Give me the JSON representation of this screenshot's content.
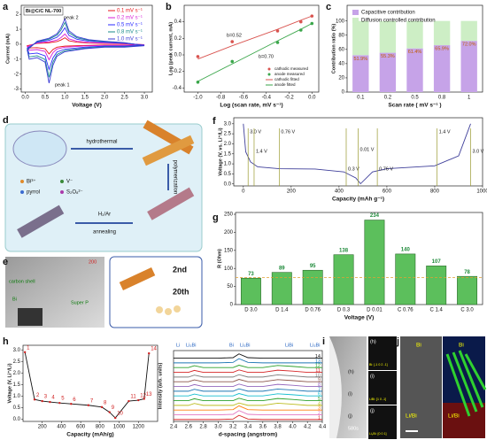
{
  "panel_labels": [
    "a",
    "b",
    "c",
    "d",
    "e",
    "f",
    "g",
    "h",
    "i",
    "j"
  ],
  "panels": {
    "d": {
      "steps": [
        "hydrothermal",
        "polymerization",
        "H₂/Ar",
        "annealing"
      ],
      "legend": [
        "Bi³⁺",
        "V⁻",
        "pyrrol",
        "S₂O₈²⁻"
      ]
    },
    "e": {
      "labels": [
        "carbon shell",
        "Bi",
        "Super P",
        "200",
        "2nd",
        "20th"
      ]
    },
    "i": {
      "labels": [
        "(h)",
        "(i)",
        "(j)",
        "580s",
        "(h)",
        "Bi: [-1 0 2 -1]",
        "(i)",
        "LiBi: [1 0 -1]",
        "(j)",
        "Li₃Bi: [0 0 1]"
      ]
    },
    "j": {
      "labels": [
        "Bi",
        "Li/Bi",
        "Bi",
        "Li/Bi"
      ]
    }
  },
  "chart_data": [
    {
      "type": "line",
      "label": "Bi@C/C NL-700",
      "xlabel": "Voltage (V)",
      "ylabel": "Current (mA)",
      "x": [
        3.0,
        2.5,
        2.0,
        1.5,
        1.0,
        0.8,
        0.7,
        0.6,
        0.5,
        0.3,
        0.1,
        0.05,
        0.3,
        0.6,
        0.8,
        0.9,
        1.0,
        1.1,
        1.3,
        1.6,
        2.0,
        2.5,
        3.0
      ],
      "series": [
        {
          "name": "0.1 mV s⁻¹",
          "color": "#e8161b",
          "values": [
            -0.03,
            -0.05,
            -0.05,
            -0.08,
            -0.13,
            -0.2,
            -0.35,
            -0.65,
            -0.3,
            -0.23,
            -0.25,
            -0.1,
            0.05,
            0.1,
            0.18,
            0.28,
            0.43,
            0.23,
            0.13,
            0.08,
            0.05,
            0.03,
            -0.03
          ]
        },
        {
          "name": "0.2 mV s⁻¹",
          "color": "#d81fd8",
          "values": [
            -0.04,
            -0.08,
            -0.08,
            -0.12,
            -0.2,
            -0.32,
            -0.56,
            -1.04,
            -0.48,
            -0.36,
            -0.4,
            -0.16,
            0.08,
            0.16,
            0.28,
            0.44,
            0.68,
            0.36,
            0.2,
            0.12,
            0.08,
            0.04,
            -0.04
          ]
        },
        {
          "name": "0.5 mV s⁻¹",
          "color": "#2a2aff",
          "values": [
            -0.07,
            -0.13,
            -0.13,
            -0.2,
            -0.33,
            -0.52,
            -0.91,
            -1.69,
            -0.78,
            -0.59,
            -0.65,
            -0.26,
            0.13,
            0.26,
            0.46,
            0.72,
            1.1,
            0.59,
            0.33,
            0.2,
            0.13,
            0.07,
            -0.07
          ]
        },
        {
          "name": "0.8 mV s⁻¹",
          "color": "#17898a",
          "values": [
            -0.09,
            -0.17,
            -0.17,
            -0.26,
            -0.43,
            -0.68,
            -1.19,
            -2.21,
            -1.02,
            -0.77,
            -0.85,
            -0.34,
            0.17,
            0.34,
            0.6,
            0.94,
            1.45,
            0.77,
            0.43,
            0.26,
            0.17,
            0.09,
            -0.09
          ]
        },
        {
          "name": "1.0 mV s⁻¹",
          "color": "#3b3bd6",
          "values": [
            -0.1,
            -0.2,
            -0.2,
            -0.3,
            -0.5,
            -0.8,
            -1.4,
            -2.6,
            -1.2,
            -0.9,
            -1.0,
            -0.4,
            0.2,
            0.4,
            0.7,
            1.1,
            1.7,
            0.9,
            0.5,
            0.3,
            0.2,
            0.1,
            -0.1
          ]
        }
      ],
      "annotations": [
        "peak 1",
        "peak 2"
      ],
      "xlim": [
        -0.1,
        3.2
      ],
      "xticks": [
        {
          "value": 0,
          "label": "0.0"
        },
        {
          "value": 0.5,
          "label": "0.5"
        },
        {
          "value": 1,
          "label": "1.0"
        },
        {
          "value": 1.5,
          "label": "1.5"
        },
        {
          "value": 2,
          "label": "2.0"
        },
        {
          "value": 2.5,
          "label": "2.5"
        },
        {
          "value": 3,
          "label": "3.0"
        }
      ],
      "ylim": [
        -3.2,
        2.6
      ],
      "yticks": [
        -3,
        -2,
        -1,
        0,
        1,
        2
      ]
    },
    {
      "type": "scatter",
      "xlabel": "Log (scan rate, mV s⁻¹)",
      "ylabel": "Log (peak current, mA)",
      "x": [
        -1.0,
        -0.699,
        -0.301,
        -0.097,
        0.0
      ],
      "series": [
        {
          "name": "cathodic measured",
          "color": "#d9534f",
          "mode": "markers",
          "values": [
            -0.02,
            0.16,
            0.29,
            0.4,
            0.47
          ]
        },
        {
          "name": "anode measured",
          "color": "#3aa64a",
          "mode": "markers",
          "values": [
            -0.33,
            -0.08,
            0.15,
            0.3,
            0.38
          ]
        },
        {
          "name": "cathodic fitted",
          "color": "#d9534f",
          "mode": "line",
          "values": [
            -0.05,
            0.11,
            0.31,
            0.42,
            0.47
          ]
        },
        {
          "name": "anode fitted",
          "color": "#3aa64a",
          "mode": "line",
          "values": [
            -0.32,
            -0.11,
            0.17,
            0.31,
            0.38
          ]
        }
      ],
      "annotations": [
        "b=0.52",
        "b=0.70"
      ],
      "xlim": [
        -1.12,
        0.06
      ],
      "xticks": [
        {
          "value": -1,
          "label": "-1.0"
        },
        {
          "value": -0.8,
          "label": "-0.8"
        },
        {
          "value": -0.6,
          "label": "-0.6"
        },
        {
          "value": -0.4,
          "label": "-0.4"
        },
        {
          "value": -0.2,
          "label": "-0.2"
        },
        {
          "value": 0,
          "label": "0.0"
        }
      ],
      "ylim": [
        -0.45,
        0.6
      ],
      "yticks": [
        {
          "value": -0.4,
          "label": "-0.4"
        },
        {
          "value": -0.2,
          "label": "-0.2"
        },
        {
          "value": 0,
          "label": "0.0"
        },
        {
          "value": 0.2,
          "label": "0.2"
        },
        {
          "value": 0.4,
          "label": "0.4"
        }
      ]
    },
    {
      "type": "stacked_bar",
      "xlabel": "Scan rate ( mV s⁻¹ )",
      "ylabel": "Contribution ratio (%)",
      "categories": [
        "0.1",
        "0.2",
        "0.5",
        "0.8",
        "1"
      ],
      "series": [
        {
          "name": "Capacitive contribution",
          "color": "#c6a3e8",
          "values": [
            51.9,
            55.3,
            61.4,
            65.9,
            72.0
          ],
          "value_labels": [
            "51.9%",
            "55.3%",
            "61.4%",
            "65.9%",
            "72.0%"
          ]
        },
        {
          "name": "Diffusion controlled contribution",
          "color": "#cdeec5",
          "values": [
            48.1,
            44.7,
            38.6,
            34.1,
            28.0
          ]
        }
      ],
      "ylim": [
        0,
        122
      ],
      "yticks": [
        0,
        20,
        40,
        60,
        80,
        100
      ]
    },
    {
      "type": "line",
      "xlabel": "Capacity (mAh g⁻¹)",
      "ylabel": "Voltage (V, vs. Li⁺/Li)",
      "x": [
        0,
        10,
        30,
        60,
        150,
        300,
        420,
        470,
        490,
        540,
        600,
        800,
        900,
        950
      ],
      "series": [
        {
          "name": null,
          "color": "#3f3f9a",
          "values": [
            3.0,
            1.6,
            1.1,
            0.85,
            0.76,
            0.74,
            0.6,
            0.3,
            0.01,
            0.6,
            0.76,
            0.9,
            1.4,
            3.0
          ]
        }
      ],
      "markers": [
        {
          "x": 20,
          "label": "3.0 V"
        },
        {
          "x": 45,
          "label": "1.4 V"
        },
        {
          "x": 150,
          "label": "0.76 V"
        },
        {
          "x": 430,
          "label": "0.3 V"
        },
        {
          "x": 480,
          "label": "0.01 V"
        },
        {
          "x": 560,
          "label": "0.76 V"
        },
        {
          "x": 810,
          "label": "1.4 V"
        },
        {
          "x": 950,
          "label": "3.0 V"
        }
      ],
      "xlim": [
        -40,
        1000
      ],
      "xticks": [
        0,
        200,
        400,
        600,
        800,
        1000
      ],
      "ylim": [
        -0.1,
        3.3
      ],
      "yticks": [
        {
          "value": 0,
          "label": "0.0"
        },
        {
          "value": 0.5,
          "label": "0.5"
        },
        {
          "value": 1,
          "label": "1.0"
        },
        {
          "value": 1.5,
          "label": "1.5"
        },
        {
          "value": 2,
          "label": "2.0"
        },
        {
          "value": 2.5,
          "label": "2.5"
        },
        {
          "value": 3,
          "label": "3.0"
        }
      ]
    },
    {
      "type": "bar",
      "xlabel": "Voltage (V)",
      "ylabel": "R (Ohm)",
      "categories": [
        "D 3.0",
        "D 1.4",
        "D 0.76",
        "D 0.3",
        "D 0.01",
        "C 0.76",
        "C 1.4",
        "C 3.0"
      ],
      "values": [
        73,
        89,
        95,
        138,
        234,
        140,
        107,
        78
      ],
      "color": "#5cbf5c",
      "hline": 75,
      "hline_color": "#e0a030",
      "ylim": [
        0,
        255
      ],
      "yticks": [
        0,
        50,
        100,
        150,
        200,
        250
      ]
    },
    {
      "type": "line",
      "xlabel": "Capacity (mAh/g)",
      "ylabel": "Voltage (V, Li⁺/Li)",
      "x": [
        20,
        120,
        200,
        280,
        380,
        500,
        680,
        820,
        900,
        960,
        1100,
        1200,
        1260,
        1310
      ],
      "series": [
        {
          "name": null,
          "color": "#111111",
          "values": [
            2.9,
            0.85,
            0.78,
            0.74,
            0.7,
            0.66,
            0.6,
            0.52,
            0.3,
            0.05,
            0.78,
            0.82,
            0.88,
            2.85
          ],
          "point_labels": [
            "1",
            "2",
            "3",
            "4",
            "5",
            "6",
            "7",
            "8",
            "9",
            "10",
            "11",
            "12",
            "13",
            "14"
          ],
          "label_color": "#d02020"
        }
      ],
      "xlim": [
        0,
        1400
      ],
      "xticks": [
        200,
        400,
        600,
        800,
        1000,
        1200
      ],
      "ylim": [
        -0.1,
        3.2
      ],
      "yticks": [
        {
          "value": 0,
          "label": "0.0"
        },
        {
          "value": 0.5,
          "label": "0.5"
        },
        {
          "value": 1,
          "label": "1.0"
        },
        {
          "value": 1.5,
          "label": "1.5"
        },
        {
          "value": 2,
          "label": "2.0"
        },
        {
          "value": 2.5,
          "label": "2.5"
        },
        {
          "value": 3,
          "label": "3.0"
        }
      ]
    },
    {
      "type": "line",
      "xlabel": "d-spacing (angstrom)",
      "ylabel": "Intensity (arb. units)",
      "x": [
        2.4,
        2.6,
        2.68,
        2.8,
        3.0,
        3.2,
        3.28,
        3.4,
        3.6,
        3.8,
        4.0,
        4.2,
        4.4
      ],
      "series": [
        {
          "name": "1",
          "color": "#d62728",
          "values": [
            0,
            0,
            0,
            0,
            0,
            0.1,
            0.9,
            0.1,
            0,
            0,
            0,
            0,
            0
          ]
        },
        {
          "name": "2",
          "color": "#e377c2",
          "values": [
            1,
            1,
            1,
            1,
            1,
            1.1,
            1.9,
            1.1,
            1,
            1,
            1,
            1,
            1
          ]
        },
        {
          "name": "3",
          "color": "#ff7f0e",
          "values": [
            2,
            2,
            2,
            2,
            2,
            2.1,
            2.9,
            2.1,
            2,
            2,
            2,
            2,
            2
          ]
        },
        {
          "name": "4",
          "color": "#bcbd22",
          "values": [
            3,
            3,
            3.4,
            3,
            3,
            3,
            3.5,
            3,
            3,
            3.45,
            3.25,
            3,
            3
          ]
        },
        {
          "name": "5",
          "color": "#2ca02c",
          "values": [
            4,
            4,
            4.4,
            4,
            4,
            4,
            4.5,
            4,
            4,
            4.45,
            4.25,
            4,
            4
          ]
        },
        {
          "name": "6",
          "color": "#17becf",
          "values": [
            5,
            5,
            5.4,
            5,
            5,
            5,
            5.5,
            5,
            5,
            5.45,
            5.25,
            5,
            5
          ]
        },
        {
          "name": "7",
          "color": "#1f77b4",
          "values": [
            6,
            6,
            6.4,
            6,
            6,
            6,
            6.5,
            6,
            6,
            6.45,
            6.25,
            6,
            6
          ]
        },
        {
          "name": "8",
          "color": "#9467bd",
          "values": [
            7,
            7,
            7.4,
            7,
            7,
            7,
            7.5,
            7,
            7,
            7.45,
            7.25,
            7,
            7
          ]
        },
        {
          "name": "9",
          "color": "#8c564b",
          "values": [
            8,
            8,
            8.4,
            8,
            8,
            8,
            8.5,
            8,
            8,
            8.45,
            8.25,
            8,
            8
          ]
        },
        {
          "name": "10",
          "color": "#7f7f7f",
          "values": [
            9,
            9,
            9.4,
            9,
            9,
            9,
            9.5,
            9,
            9,
            9.45,
            9.25,
            9,
            9
          ]
        },
        {
          "name": "11",
          "color": "#d62728",
          "values": [
            10,
            10,
            10.4,
            10,
            10,
            10,
            10.5,
            10,
            10,
            10.45,
            10.25,
            10,
            10
          ]
        },
        {
          "name": "12",
          "color": "#2ca02c",
          "values": [
            11,
            11,
            11.4,
            11,
            11,
            11,
            11.5,
            11,
            11,
            11.45,
            11.25,
            11,
            11
          ]
        },
        {
          "name": "13",
          "color": "#1f77b4",
          "values": [
            12,
            12,
            12,
            12,
            12,
            12.1,
            12.9,
            12.1,
            12,
            12,
            12,
            12,
            12
          ]
        },
        {
          "name": "14",
          "color": "#111111",
          "values": [
            13,
            13,
            13,
            13,
            13,
            13.1,
            13.9,
            13.1,
            13,
            13,
            13,
            13,
            13
          ]
        }
      ],
      "annotations": [
        "Li",
        "Li₃Bi",
        "Bi",
        "Li₃Bi",
        "LiBi",
        "Li₃Bi"
      ],
      "xlim": [
        2.4,
        4.4
      ],
      "xticks": [
        2.4,
        2.6,
        2.8,
        {
          "value": 3,
          "label": "3.0"
        },
        3.2,
        3.4,
        3.6,
        3.8,
        {
          "value": 4,
          "label": "4.0"
        },
        4.2,
        4.4
      ],
      "ylim": [
        -0.4,
        14.6
      ]
    }
  ]
}
